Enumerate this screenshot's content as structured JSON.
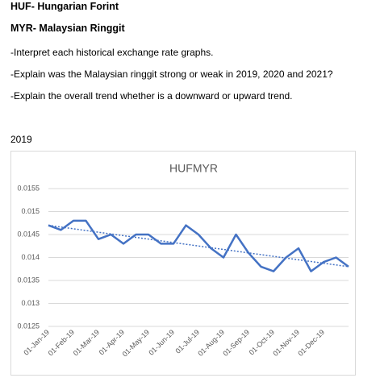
{
  "document": {
    "heading1": "HUF- Hungarian Forint",
    "heading2": "MYR- Malaysian Ringgit",
    "lines": [
      "-Interpret each historical exchange rate graphs.",
      "-Explain was the Malaysian ringgit strong or weak in 2019, 2020 and 2021?",
      "-Explain the overall trend whether is a downward or upward trend."
    ],
    "year": "2019"
  },
  "chart_data": {
    "type": "line",
    "title": "HUFMYR",
    "categories": [
      "01-Jan-19",
      null,
      "01-Feb-19",
      null,
      "01-Mar-19",
      null,
      "01-Apr-19",
      null,
      "01-May-19",
      null,
      "01-Jun-19",
      null,
      "01-Jul-19",
      null,
      "01-Aug-19",
      null,
      "01-Sep-19",
      null,
      "01-Oct-19",
      null,
      "01-Nov-19",
      null,
      "01-Dec-19",
      null,
      null
    ],
    "series": [
      {
        "color": "#4472c4",
        "values": [
          0.0147,
          0.0146,
          0.0148,
          0.0148,
          0.0144,
          0.0145,
          0.0143,
          0.0145,
          0.0145,
          0.0143,
          0.0143,
          0.0147,
          0.0145,
          0.0142,
          0.014,
          0.0145,
          0.0141,
          0.0138,
          0.0137,
          0.014,
          0.0142,
          0.0137,
          0.0139,
          0.014,
          0.0138
        ]
      }
    ],
    "trendline": {
      "values": [
        0.0147,
        0.0138
      ],
      "color": "#4472c4",
      "style": "dotted"
    },
    "ylim": [
      0.0125,
      0.0155
    ],
    "yticks": [
      0.0125,
      0.013,
      0.0135,
      0.014,
      0.0145,
      0.015,
      0.0155
    ],
    "grid": true
  }
}
